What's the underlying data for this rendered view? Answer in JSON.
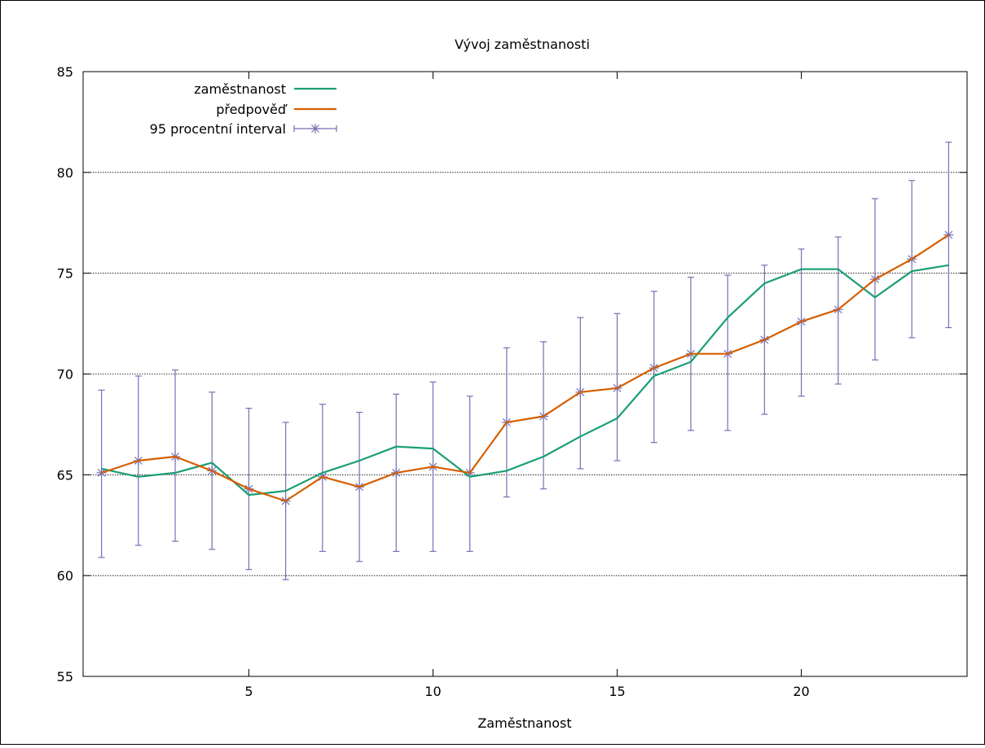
{
  "chart_data": {
    "type": "line",
    "title": "Vývoj zaměstnanosti",
    "xlabel": "Zaměstnanost",
    "ylabel": "",
    "xlim": [
      0.5,
      24.5
    ],
    "ylim": [
      55,
      85
    ],
    "xticks": [
      5,
      10,
      15,
      20
    ],
    "yticks": [
      55,
      60,
      65,
      70,
      75,
      80,
      85
    ],
    "grid": "horizontal",
    "legend_position": "top-left",
    "x": [
      1,
      2,
      3,
      4,
      5,
      6,
      7,
      8,
      9,
      10,
      11,
      12,
      13,
      14,
      15,
      16,
      17,
      18,
      19,
      20,
      21,
      22,
      23,
      24
    ],
    "series": [
      {
        "name": "zaměstnanost",
        "color": "#1a9e73",
        "values": [
          65.3,
          64.9,
          65.1,
          65.6,
          64.0,
          64.2,
          65.1,
          65.7,
          66.4,
          66.3,
          64.9,
          65.2,
          65.9,
          66.9,
          67.8,
          69.9,
          70.6,
          72.8,
          74.5,
          75.2,
          75.2,
          73.8,
          75.1,
          75.4
        ]
      },
      {
        "name": "předpověď",
        "color": "#d55e00",
        "values": [
          65.1,
          65.7,
          65.9,
          65.2,
          64.3,
          63.7,
          64.9,
          64.4,
          65.1,
          65.4,
          65.1,
          67.6,
          67.9,
          69.1,
          69.3,
          70.3,
          71.0,
          71.0,
          71.7,
          72.6,
          73.2,
          74.7,
          75.7,
          76.9
        ]
      },
      {
        "name": "95 procentní interval",
        "color": "#7570b3",
        "center": [
          65.1,
          65.7,
          65.9,
          65.2,
          64.3,
          63.7,
          64.9,
          64.4,
          65.1,
          65.4,
          65.1,
          67.6,
          67.9,
          69.1,
          69.3,
          70.3,
          71.0,
          71.0,
          71.7,
          72.6,
          73.2,
          74.7,
          75.7,
          76.9
        ],
        "lower": [
          60.9,
          61.5,
          61.7,
          61.3,
          60.3,
          59.8,
          61.2,
          60.7,
          61.2,
          61.2,
          61.2,
          63.9,
          64.3,
          65.3,
          65.7,
          66.6,
          67.2,
          67.2,
          68.0,
          68.9,
          69.5,
          70.7,
          71.8,
          72.3
        ],
        "upper": [
          69.2,
          69.9,
          70.2,
          69.1,
          68.3,
          67.6,
          68.5,
          68.1,
          69.0,
          69.6,
          68.9,
          71.3,
          71.6,
          72.8,
          73.0,
          74.1,
          74.8,
          74.9,
          75.4,
          76.2,
          76.8,
          78.7,
          79.6,
          81.5
        ]
      }
    ]
  }
}
